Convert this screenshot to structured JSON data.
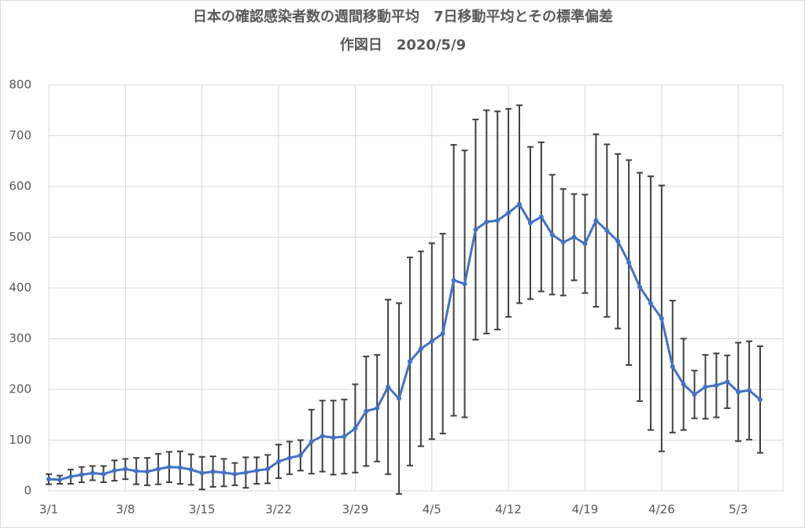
{
  "chart_data": {
    "type": "line",
    "title": "日本の確認感染者数の週間移動平均　7日移動平均とその標準偏差",
    "subtitle": "作図日　2020/5/9",
    "categories": [
      "3/1",
      null,
      null,
      null,
      null,
      null,
      null,
      "3/8",
      null,
      null,
      null,
      null,
      null,
      null,
      "3/15",
      null,
      null,
      null,
      null,
      null,
      null,
      "3/22",
      null,
      null,
      null,
      null,
      null,
      null,
      "3/29",
      null,
      null,
      null,
      null,
      null,
      null,
      "4/5",
      null,
      null,
      null,
      null,
      null,
      null,
      "4/12",
      null,
      null,
      null,
      null,
      null,
      null,
      "4/19",
      null,
      null,
      null,
      null,
      null,
      null,
      "4/26",
      null,
      null,
      null,
      null,
      null,
      null,
      "5/3",
      null,
      null
    ],
    "values": [
      23,
      22,
      28,
      32,
      35,
      33,
      40,
      43,
      39,
      38,
      43,
      47,
      46,
      42,
      35,
      38,
      36,
      33,
      36,
      40,
      43,
      58,
      65,
      70,
      97,
      108,
      105,
      107,
      123,
      157,
      163,
      205,
      182,
      255,
      280,
      295,
      310,
      415,
      408,
      515,
      530,
      533,
      548,
      565,
      528,
      540,
      505,
      490,
      500,
      487,
      533,
      513,
      492,
      450,
      402,
      370,
      340,
      245,
      210,
      190,
      205,
      208,
      215,
      195,
      198,
      180
    ],
    "errors": [
      10,
      8,
      14,
      15,
      14,
      16,
      20,
      20,
      26,
      27,
      30,
      30,
      32,
      30,
      32,
      30,
      27,
      22,
      30,
      26,
      28,
      33,
      32,
      30,
      63,
      70,
      73,
      73,
      87,
      108,
      105,
      172,
      188,
      205,
      192,
      193,
      197,
      267,
      263,
      217,
      220,
      215,
      205,
      195,
      150,
      147,
      118,
      105,
      85,
      97,
      170,
      170,
      172,
      202,
      225,
      250,
      262,
      130,
      90,
      47,
      63,
      63,
      52,
      97,
      97,
      105
    ],
    "color": "#4472c4",
    "error_color": "#404040",
    "ylim": [
      0,
      800
    ],
    "yticks": [
      0,
      100,
      200,
      300,
      400,
      500,
      600,
      700,
      800
    ],
    "grid": true
  }
}
